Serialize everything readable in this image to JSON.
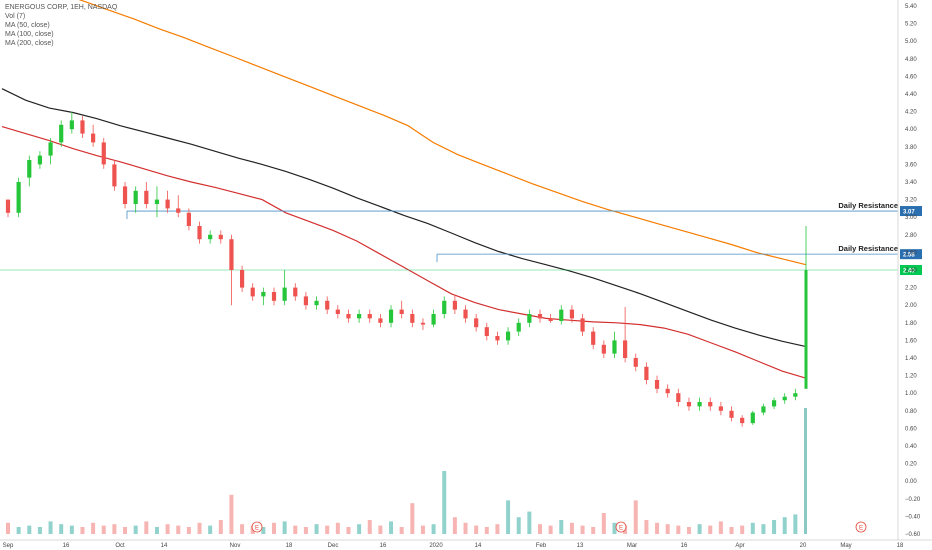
{
  "legend": {
    "title": "ENERGOUS CORP, 1ЕН, NASDAQ",
    "vol": "Vol (7)",
    "ma50": "MA (50, close)",
    "ma100": "MA (100, close)",
    "ma200": "MA (200, close)"
  },
  "chart_data": {
    "type": "candlestick",
    "symbol": "ENERGOUS CORP",
    "exchange": "NASDAQ",
    "ylim": [
      -0.6,
      5.4
    ],
    "y_ticks": [
      "5.40",
      "5.20",
      "5.00",
      "4.80",
      "4.60",
      "4.40",
      "4.20",
      "4.00",
      "3.80",
      "3.60",
      "3.40",
      "3.20",
      "3.00",
      "2.80",
      "2.60",
      "2.40",
      "2.20",
      "2.00",
      "1.80",
      "1.60",
      "1.40",
      "1.20",
      "1.00",
      "0.80",
      "0.60",
      "0.40",
      "0.20",
      "0.00",
      "−0.20",
      "−0.40",
      "−0.60"
    ],
    "x_ticks": [
      "Sep",
      "16",
      "Oct",
      "14",
      "Nov",
      "18",
      "Dec",
      "16",
      "2020",
      "14",
      "Feb",
      "13",
      "Mar",
      "16",
      "Apr",
      "20",
      "May",
      "18"
    ],
    "grid": false,
    "resistance_lines": [
      {
        "label": "Daily Resistance",
        "value": 3.07,
        "tag": "3.07",
        "color": "#4a90c8"
      },
      {
        "label": "Daily Resistance",
        "value": 2.58,
        "tag": "2.58",
        "color": "#4a90c8"
      }
    ],
    "current_price": {
      "value": 2.4,
      "tag": "2.40",
      "line_color": "#00c853"
    },
    "series": [
      {
        "name": "MA (50, close)",
        "color": "#d32f2f",
        "values": [
          4.03,
          3.95,
          3.87,
          3.78,
          3.7,
          3.63,
          3.55,
          3.47,
          3.4,
          3.34,
          3.27,
          3.2,
          3.05,
          2.95,
          2.85,
          2.73,
          2.58,
          2.43,
          2.28,
          2.13,
          2.03,
          1.95,
          1.9,
          1.85,
          1.83,
          1.81,
          1.8,
          1.78,
          1.74,
          1.67,
          1.57,
          1.47,
          1.36,
          1.25,
          1.17
        ]
      },
      {
        "name": "MA (100, close)",
        "color": "#222222",
        "values": [
          4.46,
          4.33,
          4.24,
          4.19,
          4.12,
          4.04,
          3.97,
          3.9,
          3.83,
          3.75,
          3.67,
          3.6,
          3.52,
          3.43,
          3.33,
          3.22,
          3.12,
          3.02,
          2.93,
          2.82,
          2.71,
          2.61,
          2.53,
          2.46,
          2.39,
          2.31,
          2.22,
          2.13,
          2.03,
          1.93,
          1.83,
          1.74,
          1.66,
          1.59,
          1.53
        ]
      },
      {
        "name": "MA (200, close)",
        "color": "#f57c00",
        "values": [
          5.55,
          5.45,
          5.35,
          5.25,
          5.14,
          5.04,
          4.93,
          4.82,
          4.71,
          4.6,
          4.49,
          4.38,
          4.27,
          4.16,
          4.04,
          3.85,
          3.71,
          3.6,
          3.49,
          3.38,
          3.28,
          3.18,
          3.09,
          3.01,
          2.93,
          2.85,
          2.77,
          2.69,
          2.6,
          2.53,
          2.46
        ]
      }
    ],
    "ohlc": [
      [
        3.2,
        3.2,
        3.0,
        3.05
      ],
      [
        3.05,
        3.45,
        3.0,
        3.4
      ],
      [
        3.45,
        3.7,
        3.35,
        3.65
      ],
      [
        3.6,
        3.75,
        3.55,
        3.7
      ],
      [
        3.7,
        3.9,
        3.6,
        3.85
      ],
      [
        3.85,
        4.1,
        3.8,
        4.05
      ],
      [
        4.0,
        4.2,
        3.95,
        4.1
      ],
      [
        4.1,
        4.15,
        3.9,
        3.95
      ],
      [
        3.95,
        4.05,
        3.8,
        3.85
      ],
      [
        3.85,
        3.9,
        3.55,
        3.6
      ],
      [
        3.6,
        3.65,
        3.3,
        3.35
      ],
      [
        3.35,
        3.4,
        3.1,
        3.15
      ],
      [
        3.15,
        3.35,
        3.05,
        3.3
      ],
      [
        3.3,
        3.4,
        3.1,
        3.15
      ],
      [
        3.15,
        3.35,
        3.0,
        3.2
      ],
      [
        3.2,
        3.3,
        3.05,
        3.1
      ],
      [
        3.1,
        3.25,
        3.0,
        3.05
      ],
      [
        3.05,
        3.1,
        2.85,
        2.9
      ],
      [
        2.9,
        2.95,
        2.7,
        2.75
      ],
      [
        2.75,
        2.85,
        2.7,
        2.8
      ],
      [
        2.8,
        2.85,
        2.7,
        2.75
      ],
      [
        2.75,
        2.8,
        2.0,
        2.4
      ],
      [
        2.4,
        2.45,
        2.15,
        2.2
      ],
      [
        2.2,
        2.25,
        2.05,
        2.1
      ],
      [
        2.1,
        2.2,
        2.0,
        2.15
      ],
      [
        2.15,
        2.2,
        2.0,
        2.05
      ],
      [
        2.05,
        2.4,
        2.0,
        2.2
      ],
      [
        2.2,
        2.25,
        2.05,
        2.1
      ],
      [
        2.1,
        2.15,
        1.95,
        2.0
      ],
      [
        2.0,
        2.1,
        1.95,
        2.05
      ],
      [
        2.05,
        2.1,
        1.9,
        1.95
      ],
      [
        1.95,
        2.0,
        1.85,
        1.9
      ],
      [
        1.9,
        1.95,
        1.8,
        1.85
      ],
      [
        1.85,
        1.95,
        1.8,
        1.9
      ],
      [
        1.9,
        1.95,
        1.8,
        1.85
      ],
      [
        1.85,
        1.9,
        1.75,
        1.8
      ],
      [
        1.8,
        2.0,
        1.75,
        1.95
      ],
      [
        1.95,
        2.05,
        1.85,
        1.9
      ],
      [
        1.9,
        1.95,
        1.75,
        1.8
      ],
      [
        1.8,
        1.85,
        1.72,
        1.78
      ],
      [
        1.78,
        1.95,
        1.75,
        1.9
      ],
      [
        1.9,
        2.1,
        1.85,
        2.05
      ],
      [
        2.05,
        2.12,
        1.9,
        1.95
      ],
      [
        1.95,
        2.0,
        1.8,
        1.85
      ],
      [
        1.85,
        1.9,
        1.7,
        1.75
      ],
      [
        1.75,
        1.8,
        1.6,
        1.65
      ],
      [
        1.65,
        1.7,
        1.55,
        1.6
      ],
      [
        1.6,
        1.75,
        1.55,
        1.7
      ],
      [
        1.7,
        1.85,
        1.65,
        1.8
      ],
      [
        1.8,
        1.95,
        1.75,
        1.9
      ],
      [
        1.9,
        1.95,
        1.8,
        1.85
      ],
      [
        1.85,
        1.9,
        1.8,
        1.82
      ],
      [
        1.82,
        2.0,
        1.78,
        1.95
      ],
      [
        1.95,
        2.0,
        1.8,
        1.85
      ],
      [
        1.85,
        1.9,
        1.65,
        1.7
      ],
      [
        1.7,
        1.75,
        1.5,
        1.55
      ],
      [
        1.55,
        1.6,
        1.4,
        1.45
      ],
      [
        1.45,
        1.7,
        1.4,
        1.6
      ],
      [
        1.6,
        1.98,
        1.35,
        1.4
      ],
      [
        1.4,
        1.45,
        1.25,
        1.3
      ],
      [
        1.3,
        1.35,
        1.1,
        1.15
      ],
      [
        1.15,
        1.2,
        1.0,
        1.05
      ],
      [
        1.05,
        1.1,
        0.95,
        1.0
      ],
      [
        1.0,
        1.05,
        0.85,
        0.9
      ],
      [
        0.9,
        0.95,
        0.8,
        0.85
      ],
      [
        0.85,
        0.95,
        0.8,
        0.9
      ],
      [
        0.9,
        0.95,
        0.8,
        0.85
      ],
      [
        0.85,
        0.9,
        0.75,
        0.8
      ],
      [
        0.8,
        0.85,
        0.68,
        0.72
      ],
      [
        0.72,
        0.75,
        0.62,
        0.66
      ],
      [
        0.66,
        0.8,
        0.64,
        0.78
      ],
      [
        0.78,
        0.88,
        0.75,
        0.85
      ],
      [
        0.85,
        0.95,
        0.82,
        0.92
      ],
      [
        0.92,
        1.0,
        0.88,
        0.96
      ],
      [
        0.96,
        1.05,
        0.92,
        1.0
      ],
      [
        1.05,
        2.9,
        1.05,
        2.4
      ]
    ],
    "volume": [
      0.08,
      0.05,
      0.06,
      0.05,
      0.09,
      0.07,
      0.06,
      0.05,
      0.08,
      0.06,
      0.07,
      0.05,
      0.06,
      0.09,
      0.05,
      0.07,
      0.06,
      0.05,
      0.08,
      0.06,
      0.1,
      0.28,
      0.07,
      0.06,
      0.05,
      0.08,
      0.09,
      0.06,
      0.05,
      0.07,
      0.06,
      0.08,
      0.05,
      0.07,
      0.1,
      0.06,
      0.09,
      0.05,
      0.22,
      0.06,
      0.07,
      0.45,
      0.12,
      0.08,
      0.06,
      0.05,
      0.07,
      0.24,
      0.12,
      0.16,
      0.07,
      0.06,
      0.1,
      0.08,
      0.06,
      0.05,
      0.15,
      0.08,
      0.06,
      0.24,
      0.1,
      0.08,
      0.07,
      0.06,
      0.05,
      0.07,
      0.06,
      0.09,
      0.05,
      0.06,
      0.08,
      0.07,
      0.1,
      0.12,
      0.14,
      0.9
    ]
  },
  "colors": {
    "up": "#26c63a",
    "down": "#ef5350",
    "vol_up": "#7ecac4",
    "vol_down": "#f4a7a5",
    "big_vol": "#8cc9c6",
    "ma50": "#d32f2f",
    "ma100": "#222222",
    "ma200": "#f57c00",
    "resistance": "#4a90c8",
    "price_line": "#00c853"
  }
}
